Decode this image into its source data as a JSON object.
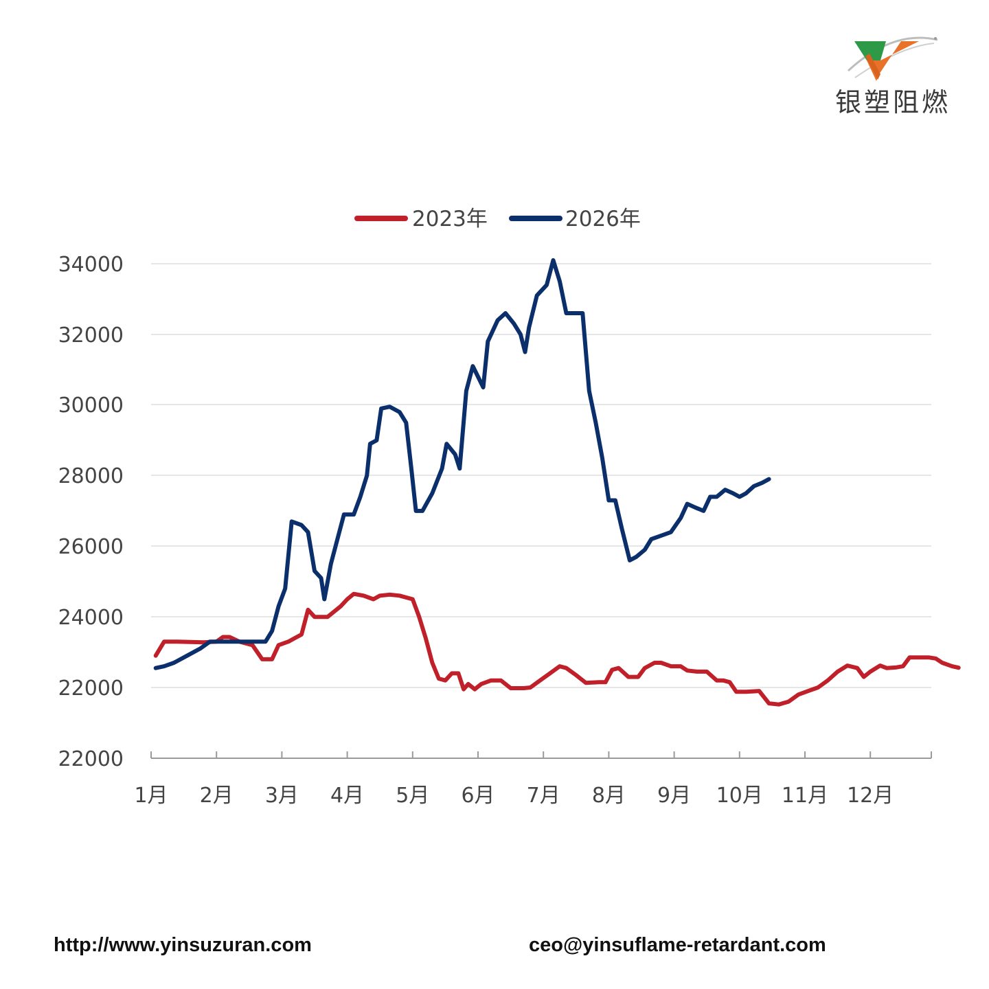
{
  "logo": {
    "text": "银塑阻燃"
  },
  "footer": {
    "website": "http://www.yinsuzuran.com",
    "email": "ceo@yinsuflame-retardant.com"
  },
  "colors": {
    "series_2023": "#c0202a",
    "series_2026": "#0b2f6b",
    "grid": "#dddddd"
  },
  "chart_data": {
    "type": "line",
    "title": "",
    "xlabel": "",
    "ylabel": "",
    "x_ticks": [
      "1月",
      "2月",
      "3月",
      "4月",
      "5月",
      "6月",
      "7月",
      "8月",
      "9月",
      "10月",
      "11月",
      "12月"
    ],
    "y_ticks": [
      "22000",
      "22000",
      "24000",
      "26000",
      "28000",
      "30000",
      "32000",
      "34000"
    ],
    "xlim": [
      1,
      13
    ],
    "legend_position": "top-center",
    "grid": true,
    "series": [
      {
        "name": "2023年",
        "points": [
          [
            1.07,
            22900
          ],
          [
            1.2,
            23300
          ],
          [
            1.4,
            23300
          ],
          [
            1.8,
            23280
          ],
          [
            2.0,
            23300
          ],
          [
            2.1,
            23430
          ],
          [
            2.2,
            23430
          ],
          [
            2.35,
            23300
          ],
          [
            2.55,
            23200
          ],
          [
            2.7,
            22800
          ],
          [
            2.85,
            22800
          ],
          [
            2.95,
            23200
          ],
          [
            3.1,
            23300
          ],
          [
            3.2,
            23400
          ],
          [
            3.3,
            23500
          ],
          [
            3.4,
            24200
          ],
          [
            3.5,
            24000
          ],
          [
            3.7,
            24000
          ],
          [
            3.9,
            24300
          ],
          [
            4.0,
            24500
          ],
          [
            4.1,
            24650
          ],
          [
            4.25,
            24600
          ],
          [
            4.4,
            24500
          ],
          [
            4.5,
            24600
          ],
          [
            4.65,
            24630
          ],
          [
            4.8,
            24600
          ],
          [
            5.0,
            24500
          ],
          [
            5.1,
            24000
          ],
          [
            5.2,
            23400
          ],
          [
            5.3,
            22700
          ],
          [
            5.4,
            22250
          ],
          [
            5.5,
            22200
          ],
          [
            5.6,
            22400
          ],
          [
            5.7,
            22400
          ],
          [
            5.78,
            21950
          ],
          [
            5.85,
            22100
          ],
          [
            5.95,
            21950
          ],
          [
            6.05,
            22100
          ],
          [
            6.2,
            22200
          ],
          [
            6.35,
            22200
          ],
          [
            6.5,
            21980
          ],
          [
            6.7,
            21980
          ],
          [
            6.8,
            22000
          ],
          [
            6.95,
            22200
          ],
          [
            7.1,
            22400
          ],
          [
            7.25,
            22600
          ],
          [
            7.35,
            22550
          ],
          [
            7.5,
            22350
          ],
          [
            7.65,
            22130
          ],
          [
            7.85,
            22150
          ],
          [
            7.95,
            22150
          ],
          [
            8.05,
            22500
          ],
          [
            8.15,
            22550
          ],
          [
            8.3,
            22300
          ],
          [
            8.45,
            22300
          ],
          [
            8.55,
            22550
          ],
          [
            8.7,
            22700
          ],
          [
            8.8,
            22700
          ],
          [
            8.95,
            22600
          ],
          [
            9.1,
            22600
          ],
          [
            9.2,
            22480
          ],
          [
            9.35,
            22450
          ],
          [
            9.5,
            22450
          ],
          [
            9.65,
            22200
          ],
          [
            9.75,
            22200
          ],
          [
            9.85,
            22150
          ],
          [
            9.95,
            21880
          ],
          [
            10.1,
            21880
          ],
          [
            10.3,
            21900
          ],
          [
            10.45,
            21550
          ],
          [
            10.6,
            21520
          ],
          [
            10.75,
            21600
          ],
          [
            10.9,
            21800
          ],
          [
            11.05,
            21900
          ],
          [
            11.2,
            22000
          ],
          [
            11.35,
            22200
          ],
          [
            11.5,
            22450
          ],
          [
            11.65,
            22620
          ],
          [
            11.8,
            22550
          ],
          [
            11.9,
            22300
          ],
          [
            12.0,
            22450
          ],
          [
            12.15,
            22620
          ],
          [
            12.25,
            22550
          ],
          [
            12.4,
            22570
          ],
          [
            12.5,
            22600
          ],
          [
            12.6,
            22850
          ],
          [
            12.75,
            22850
          ],
          [
            12.9,
            22850
          ],
          [
            13.0,
            22820
          ],
          [
            13.1,
            22700
          ],
          [
            13.25,
            22600
          ],
          [
            13.35,
            22560
          ]
        ]
      },
      {
        "name": "2026年",
        "points": [
          [
            1.07,
            22550
          ],
          [
            1.2,
            22600
          ],
          [
            1.35,
            22700
          ],
          [
            1.55,
            22900
          ],
          [
            1.75,
            23100
          ],
          [
            1.9,
            23300
          ],
          [
            2.1,
            23300
          ],
          [
            2.3,
            23300
          ],
          [
            2.5,
            23300
          ],
          [
            2.75,
            23300
          ],
          [
            2.85,
            23600
          ],
          [
            2.95,
            24300
          ],
          [
            3.05,
            24800
          ],
          [
            3.15,
            26700
          ],
          [
            3.3,
            26600
          ],
          [
            3.4,
            26400
          ],
          [
            3.5,
            25300
          ],
          [
            3.6,
            25100
          ],
          [
            3.65,
            24500
          ],
          [
            3.75,
            25500
          ],
          [
            3.85,
            26200
          ],
          [
            3.95,
            26900
          ],
          [
            4.1,
            26900
          ],
          [
            4.2,
            27400
          ],
          [
            4.3,
            28000
          ],
          [
            4.35,
            28900
          ],
          [
            4.45,
            29000
          ],
          [
            4.52,
            29900
          ],
          [
            4.65,
            29950
          ],
          [
            4.8,
            29800
          ],
          [
            4.9,
            29500
          ],
          [
            4.98,
            28200
          ],
          [
            5.05,
            27000
          ],
          [
            5.15,
            27000
          ],
          [
            5.3,
            27500
          ],
          [
            5.45,
            28200
          ],
          [
            5.52,
            28900
          ],
          [
            5.65,
            28600
          ],
          [
            5.72,
            28200
          ],
          [
            5.82,
            30400
          ],
          [
            5.92,
            31100
          ],
          [
            6.0,
            30800
          ],
          [
            6.08,
            30500
          ],
          [
            6.15,
            31800
          ],
          [
            6.3,
            32400
          ],
          [
            6.42,
            32600
          ],
          [
            6.55,
            32300
          ],
          [
            6.65,
            32000
          ],
          [
            6.72,
            31500
          ],
          [
            6.78,
            32200
          ],
          [
            6.9,
            33100
          ],
          [
            7.05,
            33400
          ],
          [
            7.15,
            34100
          ],
          [
            7.25,
            33500
          ],
          [
            7.35,
            32600
          ],
          [
            7.5,
            32600
          ],
          [
            7.6,
            32600
          ],
          [
            7.7,
            30400
          ],
          [
            7.8,
            29500
          ],
          [
            7.9,
            28500
          ],
          [
            8.0,
            27300
          ],
          [
            8.1,
            27300
          ],
          [
            8.2,
            26500
          ],
          [
            8.32,
            25600
          ],
          [
            8.42,
            25700
          ],
          [
            8.55,
            25900
          ],
          [
            8.65,
            26200
          ],
          [
            8.8,
            26300
          ],
          [
            8.95,
            26400
          ],
          [
            9.1,
            26800
          ],
          [
            9.2,
            27200
          ],
          [
            9.32,
            27100
          ],
          [
            9.45,
            27000
          ],
          [
            9.55,
            27400
          ],
          [
            9.65,
            27400
          ],
          [
            9.78,
            27600
          ],
          [
            9.9,
            27500
          ],
          [
            10.0,
            27400
          ],
          [
            10.1,
            27500
          ],
          [
            10.22,
            27700
          ],
          [
            10.35,
            27800
          ],
          [
            10.45,
            27900
          ]
        ]
      }
    ]
  }
}
